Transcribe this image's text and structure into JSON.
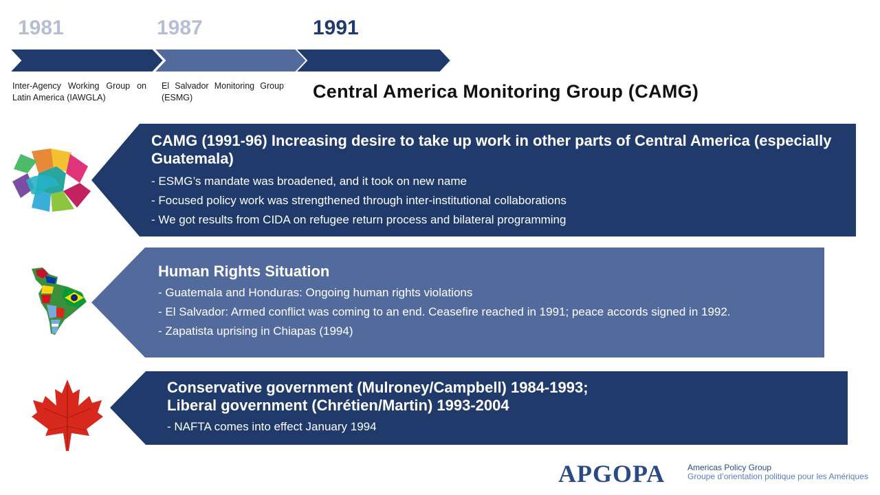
{
  "timeline": {
    "years": [
      "1981",
      "1987",
      "1991"
    ],
    "labels": [
      "Inter-Agency Working Group on Latin America (IAWGLA)",
      "El Salvador Monitoring Group (ESMG)",
      "Central America Monitoring Group (CAMG)"
    ]
  },
  "sections": [
    {
      "title": "CAMG (1991-96) Increasing desire to take up work in other parts of Central America (especially Guatemala)",
      "bullets": [
        "- ESMG’s mandate was broadened, and it took on new name",
        "- Focused policy work was strengthened through inter-institutional collaborations",
        "- We got results from CIDA on refugee return process and bilateral programming"
      ],
      "icon": "hands-icon",
      "color": "#1f3a6b"
    },
    {
      "title": "Human Rights Situation",
      "bullets": [
        "- Guatemala and Honduras: Ongoing human rights violations",
        "- El Salvador: Armed conflict was coming to an end. Ceasefire reached in 1991; peace accords signed in 1992.",
        "- Zapatista uprising in Chiapas (1994)"
      ],
      "icon": "latin-america-flags-map-icon",
      "color": "#536b9c"
    },
    {
      "title_line1": "Conservative government (Mulroney/Campbell) 1984-1993;",
      "title_line2": "Liberal government (Chrétien/Martin) 1993-2004",
      "bullets": [
        "- NAFTA comes into effect January 1994"
      ],
      "icon": "maple-leaf-icon",
      "color": "#1f3a6b"
    }
  ],
  "logo": {
    "letters": "APGOPA",
    "line1": "Americas Policy Group",
    "line2": "Groupe d’orientation politique pour les Amériques"
  }
}
